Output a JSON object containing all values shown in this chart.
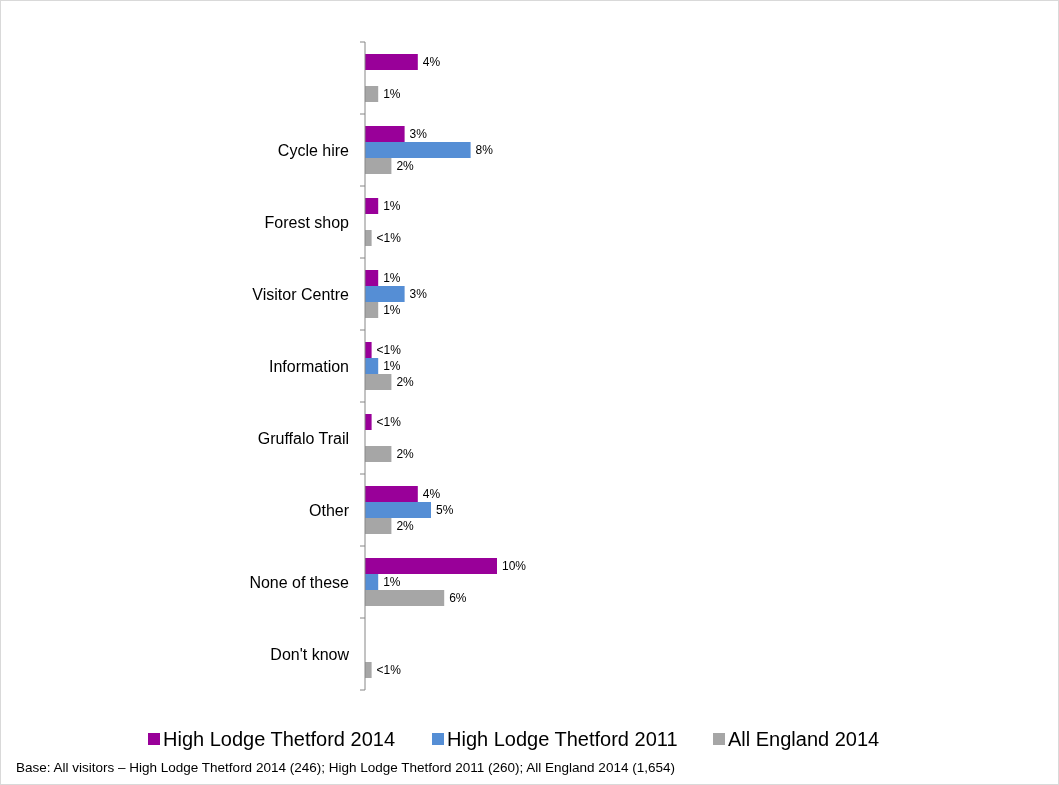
{
  "chart_data": {
    "type": "bar",
    "orientation": "horizontal",
    "categories": [
      null,
      "Cycle hire",
      "Forest shop",
      "Visitor Centre",
      "Information",
      "Gruffalo Trail",
      "Other",
      "None of these",
      "Don't know"
    ],
    "series": [
      {
        "name": "High Lodge Thetford 2014",
        "color": "#990099",
        "values": [
          4,
          3,
          1,
          1,
          0.5,
          0.5,
          4,
          10,
          null
        ],
        "value_labels": [
          "4%",
          "3%",
          "1%",
          "1%",
          "<1%",
          "<1%",
          "4%",
          "10%",
          null
        ]
      },
      {
        "name": "High Lodge Thetford 2011",
        "color": "#558ed5",
        "values": [
          null,
          8,
          null,
          3,
          1,
          null,
          5,
          1,
          null
        ],
        "value_labels": [
          null,
          "8%",
          null,
          "3%",
          "1%",
          null,
          "5%",
          "1%",
          null
        ]
      },
      {
        "name": "All England 2014",
        "color": "#a6a6a6",
        "values": [
          1,
          2,
          0.5,
          1,
          2,
          2,
          2,
          6,
          0.5
        ],
        "value_labels": [
          "1%",
          "2%",
          "<1%",
          "1%",
          "2%",
          "2%",
          "2%",
          "6%",
          "<1%"
        ]
      }
    ],
    "legend": "bottom",
    "annotations": [
      "Base: All visitors – High Lodge Thetford 2014 (246); High Lodge Thetford 2011 (260); All England 2014 (1,654)"
    ]
  }
}
